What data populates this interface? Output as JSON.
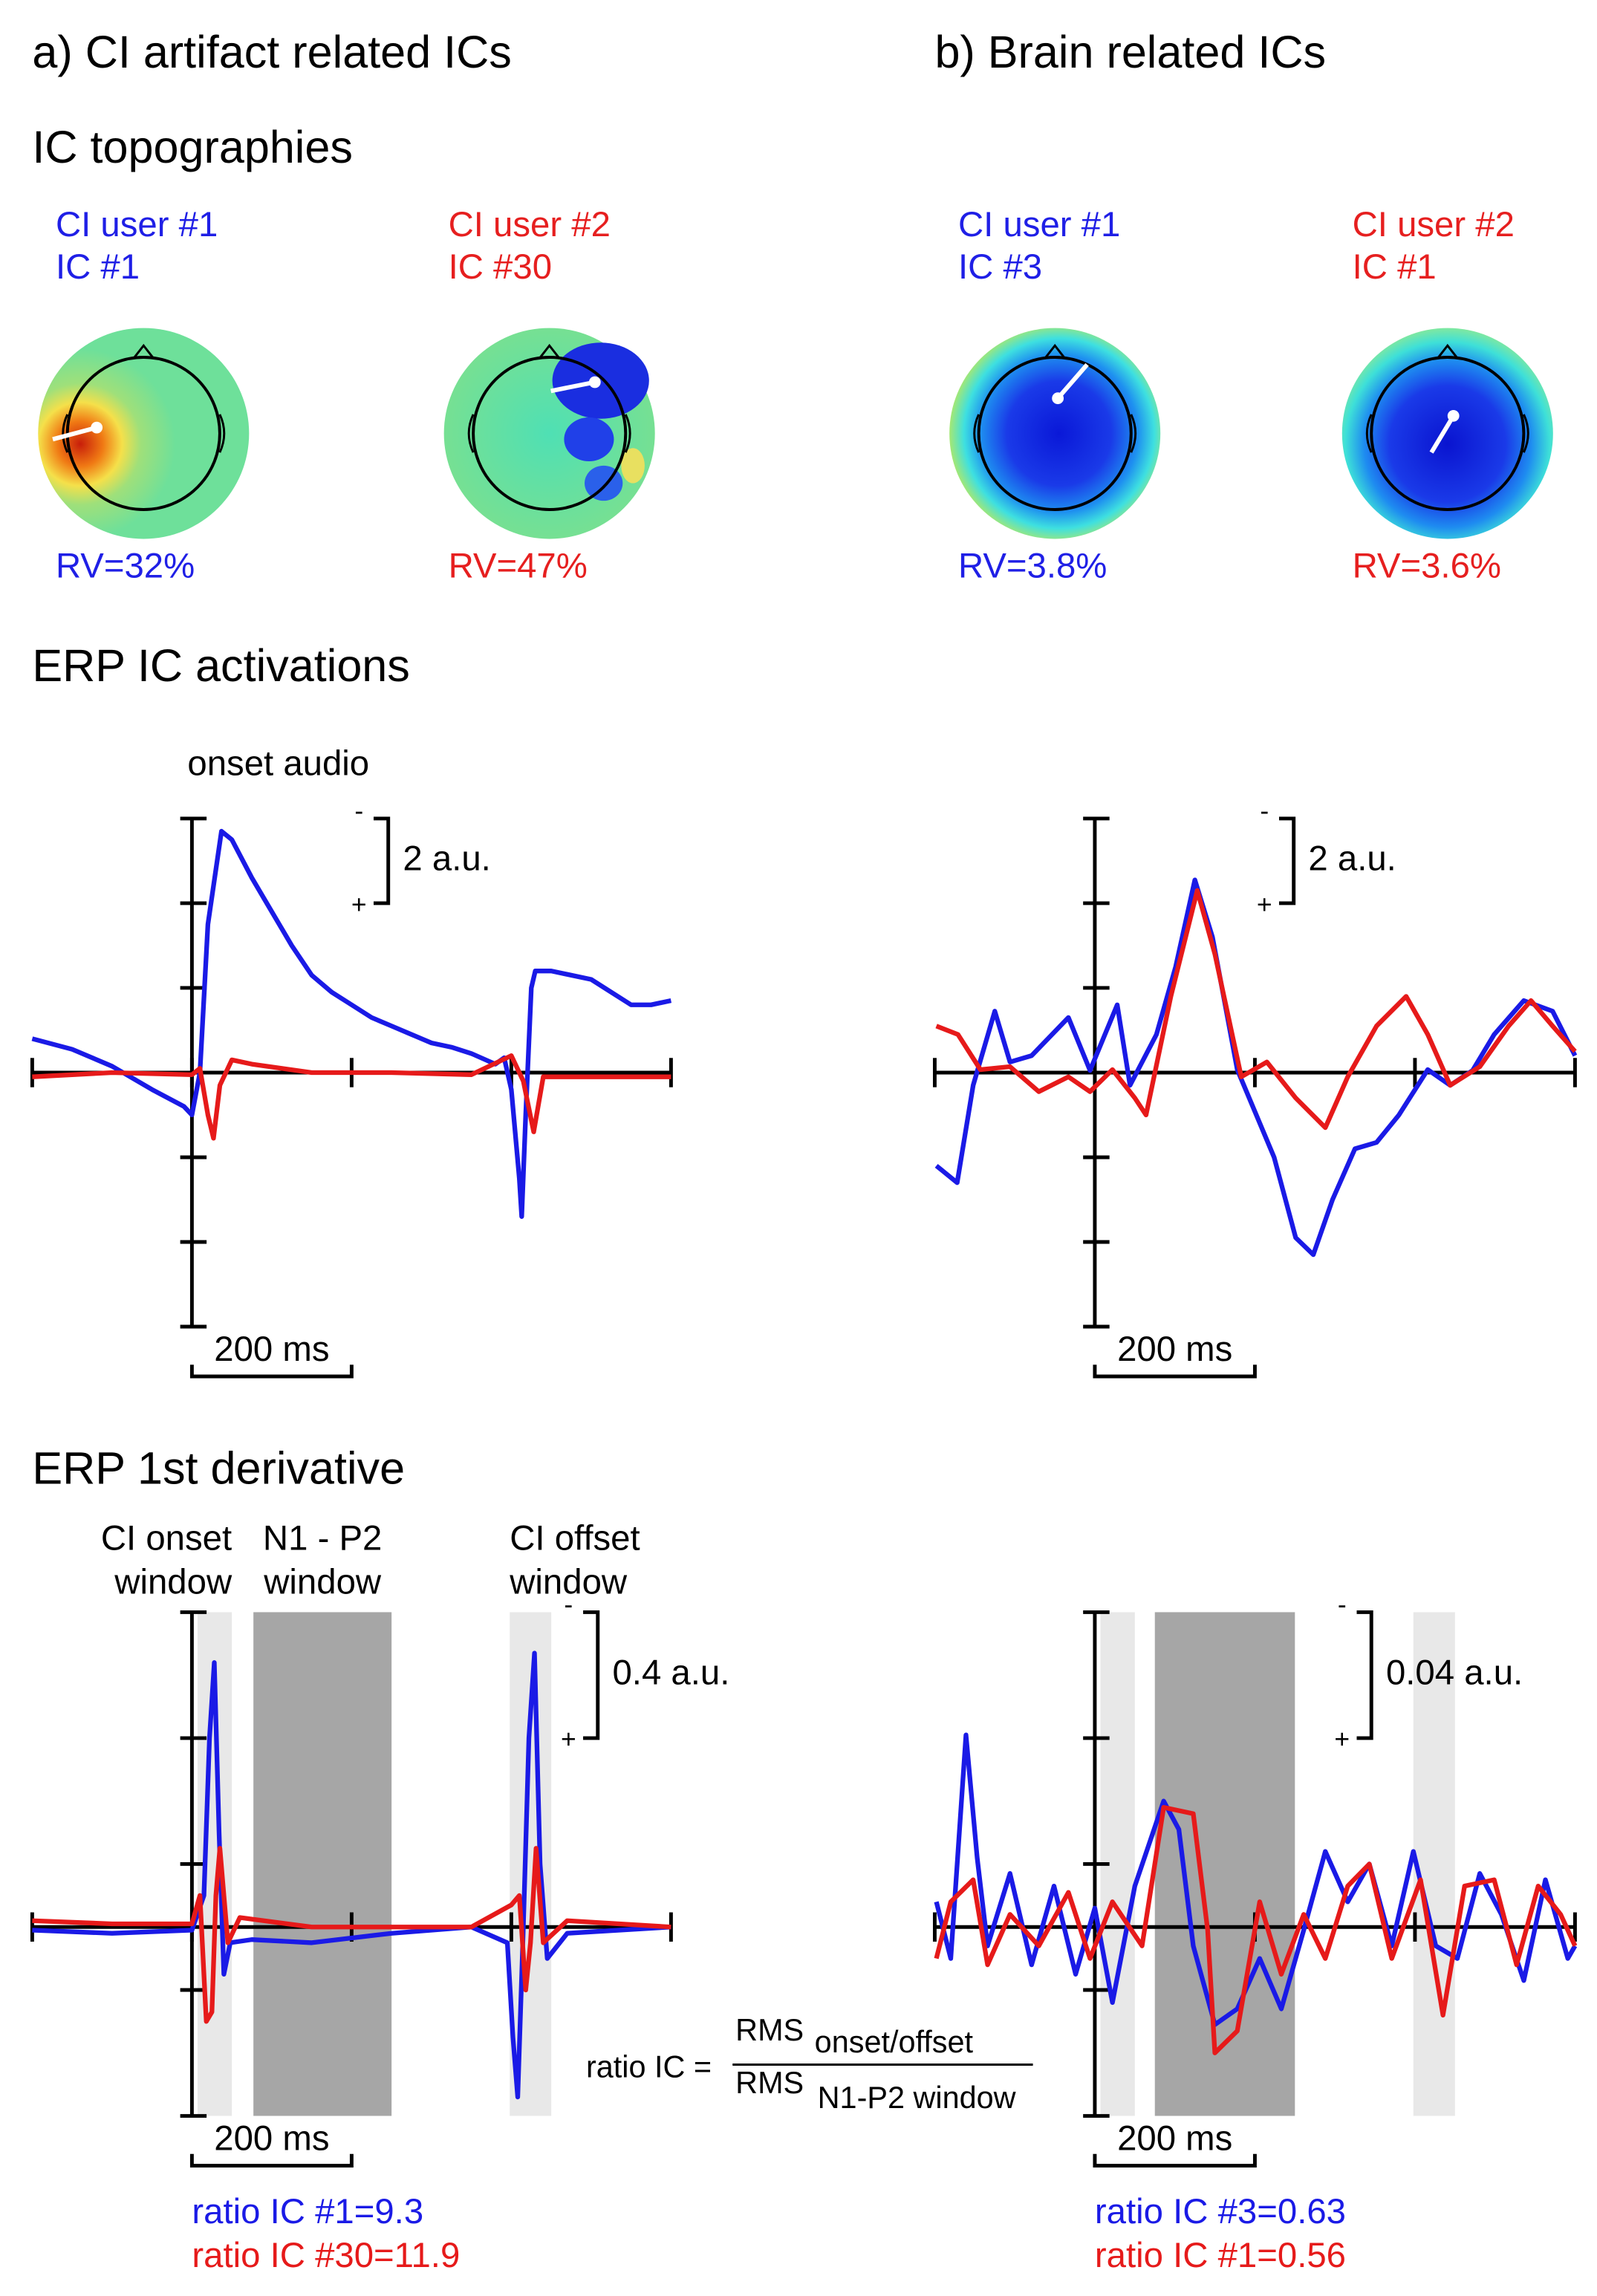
{
  "titles": [
    "a) CI artifact related ICs",
    "b) Brain related ICs"
  ],
  "sections": [
    "IC topographies",
    "ERP IC activations",
    "ERP 1st derivative"
  ],
  "topographies": [
    {
      "subject": "CI user #1",
      "ic": "IC #1",
      "rv": "RV=32%",
      "color": "#1f1fe6"
    },
    {
      "subject": "CI user #2",
      "ic": "IC #30",
      "rv": "RV=47%",
      "color": "#e61f1f"
    },
    {
      "subject": "CI user #1",
      "ic": "IC #3",
      "rv": "RV=3.8%",
      "color": "#1f1fe6"
    },
    {
      "subject": "CI user #2",
      "ic": "IC #1",
      "rv": "RV=3.6%",
      "color": "#e61f1f"
    }
  ],
  "formula": {
    "lhs": "ratio IC =",
    "numerator": "RMS",
    "numerator_sub": "onset/offset",
    "denominator": "RMS",
    "denominator_sub": "N1-P2 window"
  },
  "chart_data": [
    {
      "type": "line",
      "annotation": "onset audio",
      "xlim": [
        -200,
        600
      ],
      "xticks": [
        -200,
        0,
        200,
        400,
        600
      ],
      "ylim": [
        6,
        -6
      ],
      "yticks": [
        -6,
        -4,
        -2,
        0,
        2,
        4,
        6
      ],
      "scale_bar": {
        "value": 2,
        "label": "2 a.u."
      },
      "scale_bar_signs": [
        "-",
        "+"
      ],
      "time_bar": {
        "value": 200,
        "label": "200 ms"
      },
      "series": [
        {
          "color": "#1a1ae6",
          "x": [
            -200,
            -150,
            -100,
            -50,
            -10,
            0,
            10,
            20,
            37,
            50,
            75,
            100,
            125,
            150,
            175,
            200,
            225,
            250,
            275,
            300,
            325,
            350,
            380,
            391,
            400,
            410,
            413,
            418,
            425,
            430,
            450,
            475,
            500,
            525,
            550,
            575,
            600
          ],
          "values": [
            -0.8,
            -0.55,
            -0.15,
            0.4,
            0.8,
            1.0,
            0,
            -3.5,
            -5.7,
            -5.5,
            -4.6,
            -3.8,
            -3.0,
            -2.3,
            -1.9,
            -1.6,
            -1.3,
            -1.1,
            -0.9,
            -0.7,
            -0.6,
            -0.45,
            -0.2,
            -0.35,
            0.4,
            2.5,
            3.4,
            1.0,
            -2.0,
            -2.4,
            -2.4,
            -2.3,
            -2.2,
            -1.9,
            -1.6,
            -1.6,
            -1.7
          ]
        },
        {
          "color": "#e61a1a",
          "x": [
            -200,
            -100,
            0,
            10,
            20,
            27,
            35,
            50,
            75,
            150,
            250,
            350,
            400,
            415,
            428,
            440,
            500,
            600
          ],
          "values": [
            0.1,
            0.0,
            0.05,
            -0.1,
            1.0,
            1.55,
            0.3,
            -0.3,
            -0.2,
            0.0,
            0.0,
            0.05,
            -0.4,
            0.2,
            1.4,
            0.1,
            0.1,
            0.1
          ]
        }
      ]
    },
    {
      "type": "line",
      "xlim": [
        -200,
        600
      ],
      "xticks": [
        -200,
        0,
        200,
        400,
        600
      ],
      "ylim": [
        6,
        -6
      ],
      "yticks": [
        -6,
        -4,
        -2,
        0,
        2,
        4,
        6
      ],
      "scale_bar": {
        "value": 2,
        "label": "2 a.u."
      },
      "scale_bar_signs": [
        "-",
        "+"
      ],
      "time_bar": {
        "value": 200,
        "label": "200 ms"
      },
      "series": [
        {
          "color": "#1a1ae6",
          "x": [
            -198,
            -172,
            -152,
            -125,
            -106,
            -79,
            -33,
            -6,
            28,
            44,
            77,
            101,
            125,
            147,
            178,
            224,
            251,
            273,
            297,
            325,
            352,
            380,
            416,
            444,
            472,
            499,
            536,
            572,
            600
          ],
          "values": [
            2.2,
            2.6,
            0.3,
            -1.45,
            -0.25,
            -0.4,
            -1.3,
            -0.05,
            -1.6,
            0.3,
            -0.9,
            -2.5,
            -4.55,
            -3.2,
            -0.07,
            2.0,
            3.9,
            4.3,
            3.0,
            1.8,
            1.65,
            1.0,
            -0.07,
            0.3,
            -0.05,
            -0.9,
            -1.7,
            -1.45,
            -0.4
          ]
        },
        {
          "color": "#e61a1a",
          "x": [
            -198,
            -171,
            -143,
            -106,
            -70,
            -33,
            -6,
            22,
            50,
            64,
            95,
            128,
            150,
            183,
            215,
            251,
            288,
            316,
            352,
            389,
            416,
            444,
            481,
            517,
            545,
            572,
            600
          ],
          "values": [
            -1.1,
            -0.9,
            -0.07,
            -0.14,
            0.45,
            0.1,
            0.45,
            -0.07,
            0.6,
            1.0,
            -1.8,
            -4.3,
            -2.8,
            0.1,
            -0.25,
            0.6,
            1.3,
            0.1,
            -1.1,
            -1.8,
            -0.9,
            0.3,
            -0.14,
            -1.1,
            -1.7,
            -1.1,
            -0.5
          ]
        }
      ]
    },
    {
      "type": "line",
      "xlim": [
        -200,
        600
      ],
      "xticks": [
        -200,
        0,
        200,
        400,
        600
      ],
      "ylim": [
        0.6,
        -1.0
      ],
      "yticks": [
        -1.0,
        -0.6,
        -0.2,
        0.2,
        0.6
      ],
      "scale_bar": {
        "value": 0.4,
        "label": "0.4 a.u."
      },
      "scale_bar_signs": [
        "-",
        "+"
      ],
      "time_bar": {
        "value": 200,
        "label": "200 ms"
      },
      "windows": [
        {
          "range": [
            7,
            50
          ],
          "color": "#e8e8e8",
          "label": [
            "CI onset",
            "window"
          ]
        },
        {
          "range": [
            77,
            250
          ],
          "color": "#a6a6a6",
          "label": [
            "N1 - P2",
            "window"
          ]
        },
        {
          "range": [
            398,
            450
          ],
          "color": "#e8e8e8",
          "label": [
            "CI offset",
            "window"
          ]
        }
      ],
      "notes": [
        {
          "text": "ratio IC #1=9.3",
          "color": "#1a1ae6"
        },
        {
          "text": "ratio IC #30=11.9",
          "color": "#e61a1a"
        }
      ],
      "series": [
        {
          "color": "#1a1ae6",
          "x": [
            -200,
            -100,
            0,
            15,
            22,
            28,
            34,
            40,
            48,
            75,
            150,
            250,
            350,
            395,
            402,
            408,
            415,
            422,
            429,
            436,
            445,
            470,
            600
          ],
          "values": [
            0.01,
            0.02,
            0.01,
            -0.1,
            -0.6,
            -0.84,
            -0.3,
            0.15,
            0.05,
            0.04,
            0.05,
            0.02,
            0.0,
            0.05,
            0.35,
            0.54,
            0.0,
            -0.6,
            -0.87,
            -0.2,
            0.1,
            0.02,
            0.0
          ]
        },
        {
          "color": "#e61a1a",
          "x": [
            -200,
            -100,
            0,
            10,
            18,
            25,
            30,
            35,
            45,
            60,
            150,
            250,
            350,
            400,
            410,
            418,
            424,
            431,
            440,
            470,
            600
          ],
          "values": [
            -0.02,
            -0.01,
            -0.01,
            -0.1,
            0.3,
            0.27,
            -0.1,
            -0.25,
            0.05,
            -0.03,
            0.0,
            0.0,
            0.0,
            -0.07,
            -0.1,
            0.2,
            0.05,
            -0.25,
            0.05,
            -0.02,
            0.0
          ]
        }
      ]
    },
    {
      "type": "line",
      "xlim": [
        -200,
        600
      ],
      "xticks": [
        -200,
        0,
        200,
        400,
        600
      ],
      "ylim": [
        0.06,
        -0.1
      ],
      "yticks": [
        -0.1,
        -0.06,
        -0.02,
        0.02,
        0.06
      ],
      "scale_bar": {
        "value": 0.04,
        "label": "0.04 a.u."
      },
      "scale_bar_signs": [
        "-",
        "+"
      ],
      "time_bar": {
        "value": 200,
        "label": "200 ms"
      },
      "windows": [
        {
          "range": [
            7,
            50
          ],
          "color": "#e8e8e8"
        },
        {
          "range": [
            75,
            250
          ],
          "color": "#a6a6a6"
        },
        {
          "range": [
            398,
            450
          ],
          "color": "#e8e8e8"
        }
      ],
      "notes": [
        {
          "text": "ratio IC #3=0.63",
          "color": "#1a1ae6"
        },
        {
          "text": "ratio IC #1=0.56",
          "color": "#e61a1a"
        }
      ],
      "series": [
        {
          "color": "#1a1ae6",
          "x": [
            -198,
            -180,
            -161,
            -147,
            -134,
            -106,
            -79,
            -51,
            -24,
            0,
            22,
            50,
            86,
            105,
            123,
            150,
            178,
            206,
            233,
            261,
            288,
            316,
            343,
            371,
            398,
            426,
            453,
            481,
            508,
            536,
            563,
            591,
            600
          ],
          "values": [
            -0.008,
            0.01,
            -0.061,
            -0.022,
            0.006,
            -0.017,
            0.012,
            -0.013,
            0.015,
            -0.006,
            0.024,
            -0.013,
            -0.04,
            -0.031,
            0.006,
            0.031,
            0.026,
            0.01,
            0.026,
            0.001,
            -0.024,
            -0.008,
            -0.02,
            0.006,
            -0.024,
            0.006,
            0.01,
            -0.017,
            -0.004,
            0.017,
            -0.015,
            0.01,
            0.006
          ]
        },
        {
          "color": "#e61a1a",
          "x": [
            -198,
            -180,
            -152,
            -134,
            -106,
            -70,
            -33,
            -6,
            22,
            59,
            86,
            123,
            141,
            150,
            178,
            206,
            233,
            261,
            288,
            316,
            343,
            371,
            407,
            435,
            462,
            499,
            527,
            554,
            582,
            600
          ],
          "values": [
            0.01,
            -0.008,
            -0.015,
            0.012,
            -0.004,
            0.006,
            -0.011,
            0.01,
            -0.008,
            0.006,
            -0.038,
            -0.036,
            0.001,
            0.04,
            0.033,
            -0.008,
            0.015,
            -0.004,
            0.01,
            -0.013,
            -0.02,
            0.01,
            -0.015,
            0.028,
            -0.013,
            -0.015,
            0.012,
            -0.013,
            -0.004,
            0.006
          ]
        }
      ]
    }
  ]
}
